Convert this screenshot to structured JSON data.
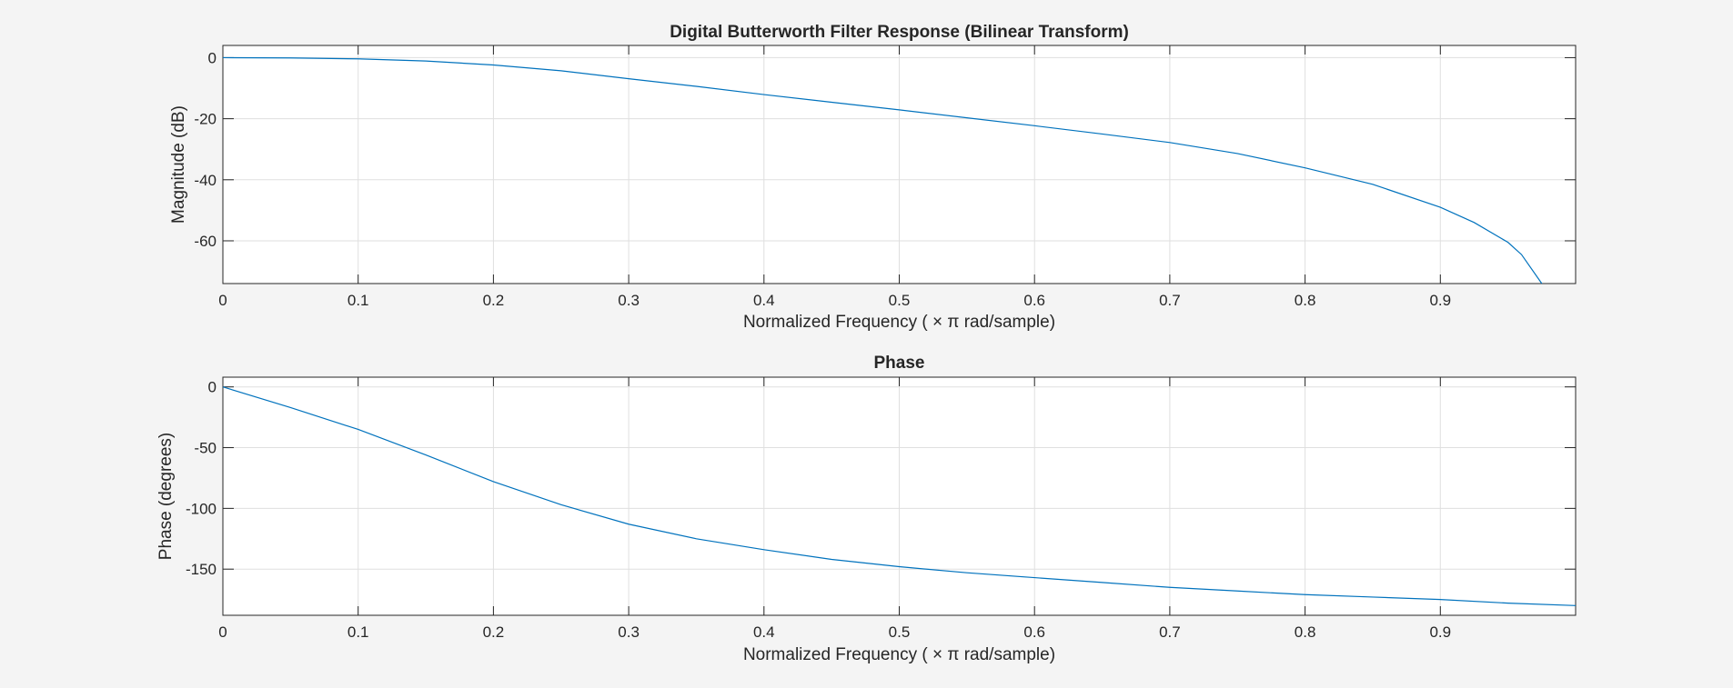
{
  "chart_data": [
    {
      "type": "line",
      "title": "Digital Butterworth Filter Response (Bilinear Transform)",
      "xlabel": "Normalized  Frequency    ( × π  rad/sample)",
      "ylabel": "Magnitude (dB)",
      "xlim": [
        0,
        1
      ],
      "ylim": [
        -74,
        4
      ],
      "grid": true,
      "x_ticks": [
        0,
        0.1,
        0.2,
        0.3,
        0.4,
        0.5,
        0.6,
        0.7,
        0.8,
        0.9
      ],
      "x_tick_labels": [
        "0",
        "0.1",
        "0.2",
        "0.3",
        "0.4",
        "0.5",
        "0.6",
        "0.7",
        "0.8",
        "0.9"
      ],
      "y_ticks": [
        0,
        -20,
        -40,
        -60
      ],
      "y_tick_labels": [
        "0",
        "-20",
        "-40",
        "-60"
      ],
      "line_color": "#0072bd",
      "series": [
        {
          "x": [
            0,
            0.05,
            0.1,
            0.15,
            0.2,
            0.25,
            0.3,
            0.35,
            0.4,
            0.45,
            0.5,
            0.55,
            0.6,
            0.65,
            0.7,
            0.75,
            0.8,
            0.85,
            0.9,
            0.925,
            0.95,
            0.96,
            0.975
          ],
          "y": [
            0,
            -0.1,
            -0.4,
            -1.1,
            -2.4,
            -4.3,
            -6.9,
            -9.4,
            -12.1,
            -14.6,
            -17.1,
            -19.7,
            -22.3,
            -25.0,
            -27.8,
            -31.4,
            -36.1,
            -41.5,
            -49.0,
            -54.0,
            -60.5,
            -64.5,
            -74.0
          ]
        }
      ]
    },
    {
      "type": "line",
      "title": "Phase",
      "xlabel": "Normalized  Frequency    ( × π  rad/sample)",
      "ylabel": "Phase (degrees)",
      "xlim": [
        0,
        1
      ],
      "ylim": [
        -188,
        8
      ],
      "grid": true,
      "x_ticks": [
        0,
        0.1,
        0.2,
        0.3,
        0.4,
        0.5,
        0.6,
        0.7,
        0.8,
        0.9
      ],
      "x_tick_labels": [
        "0",
        "0.1",
        "0.2",
        "0.3",
        "0.4",
        "0.5",
        "0.6",
        "0.7",
        "0.8",
        "0.9"
      ],
      "y_ticks": [
        0,
        -50,
        -100,
        -150
      ],
      "y_tick_labels": [
        "0",
        "-50",
        "-100",
        "-150"
      ],
      "line_color": "#0072bd",
      "series": [
        {
          "x": [
            0,
            0.05,
            0.1,
            0.15,
            0.2,
            0.25,
            0.3,
            0.35,
            0.4,
            0.45,
            0.5,
            0.55,
            0.6,
            0.65,
            0.7,
            0.75,
            0.8,
            0.85,
            0.9,
            0.95,
            1.0
          ],
          "y": [
            0,
            -17,
            -35,
            -56,
            -78,
            -97,
            -113,
            -125,
            -134,
            -142,
            -148,
            -153,
            -157,
            -161,
            -165,
            -168,
            -171,
            -173,
            -175,
            -178,
            -180
          ]
        }
      ]
    }
  ]
}
